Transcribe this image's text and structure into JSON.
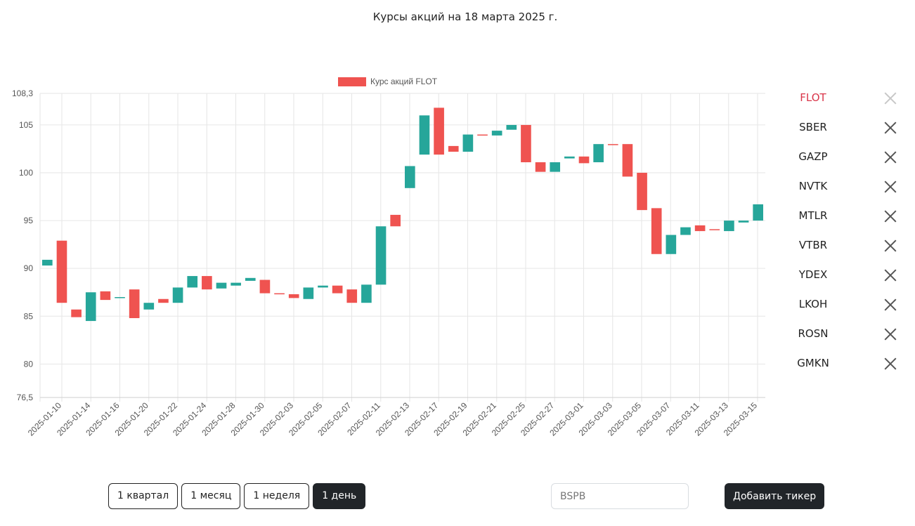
{
  "page": {
    "title": "Курсы акций на 18 марта 2025 г."
  },
  "colors": {
    "up": "#26a69a",
    "down": "#ef5350",
    "active_ticker": "#d9364a",
    "grid": "#e6e6e6"
  },
  "tickers": [
    {
      "name": "FLOT",
      "active": true
    },
    {
      "name": "SBER",
      "active": false
    },
    {
      "name": "GAZP",
      "active": false
    },
    {
      "name": "NVTK",
      "active": false
    },
    {
      "name": "MTLR",
      "active": false
    },
    {
      "name": "VTBR",
      "active": false
    },
    {
      "name": "YDEX",
      "active": false
    },
    {
      "name": "LKOH",
      "active": false
    },
    {
      "name": "ROSN",
      "active": false
    },
    {
      "name": "GMKN",
      "active": false
    }
  ],
  "remove_icon": "close-icon",
  "periods": [
    {
      "label": "1 квартал",
      "active": false
    },
    {
      "label": "1 месяц",
      "active": false
    },
    {
      "label": "1 неделя",
      "active": false
    },
    {
      "label": "1 день",
      "active": true
    }
  ],
  "add_ticker": {
    "placeholder": "BSPB",
    "button_label": "Добавить тикер"
  },
  "chart_data": {
    "type": "candlestick-bar",
    "legend": {
      "label": "Курс акций FLOT",
      "position": "top-center"
    },
    "grid": true,
    "ylim": [
      76.5,
      108.3
    ],
    "y_tick_labels": [
      "108,3",
      "105",
      "100",
      "95",
      "90",
      "85",
      "80",
      "76,5"
    ],
    "y_tick_values": [
      108.3,
      105,
      100,
      95,
      90,
      85,
      80,
      76.5
    ],
    "x_tick_labels": [
      "2025-01-10",
      "2025-01-14",
      "2025-01-16",
      "2025-01-20",
      "2025-01-22",
      "2025-01-24",
      "2025-01-28",
      "2025-01-30",
      "2025-02-03",
      "2025-02-05",
      "2025-02-07",
      "2025-02-11",
      "2025-02-13",
      "2025-02-17",
      "2025-02-19",
      "2025-02-21",
      "2025-02-25",
      "2025-02-27",
      "2025-03-01",
      "2025-03-03",
      "2025-03-05",
      "2025-03-07",
      "2025-03-11",
      "2025-03-13",
      "2025-03-15"
    ],
    "candles": [
      {
        "date": "2025-01-10",
        "open": 90.3,
        "close": 90.9
      },
      {
        "date": "2025-01-13",
        "open": 92.9,
        "close": 86.4
      },
      {
        "date": "2025-01-14",
        "open": 85.7,
        "close": 84.9
      },
      {
        "date": "2025-01-15",
        "open": 84.5,
        "close": 87.5
      },
      {
        "date": "2025-01-16",
        "open": 87.6,
        "close": 86.7
      },
      {
        "date": "2025-01-17",
        "open": 86.9,
        "close": 87.0
      },
      {
        "date": "2025-01-20",
        "open": 87.8,
        "close": 84.8
      },
      {
        "date": "2025-01-21",
        "open": 85.7,
        "close": 86.4
      },
      {
        "date": "2025-01-22",
        "open": 86.8,
        "close": 86.4
      },
      {
        "date": "2025-01-23",
        "open": 86.4,
        "close": 88.0
      },
      {
        "date": "2025-01-24",
        "open": 88.0,
        "close": 89.2
      },
      {
        "date": "2025-01-27",
        "open": 89.2,
        "close": 87.8
      },
      {
        "date": "2025-01-28",
        "open": 87.9,
        "close": 88.5
      },
      {
        "date": "2025-01-29",
        "open": 88.2,
        "close": 88.5
      },
      {
        "date": "2025-01-30",
        "open": 88.7,
        "close": 89.0
      },
      {
        "date": "2025-01-31",
        "open": 88.8,
        "close": 87.4
      },
      {
        "date": "2025-02-03",
        "open": 87.4,
        "close": 87.3
      },
      {
        "date": "2025-02-04",
        "open": 87.3,
        "close": 86.9
      },
      {
        "date": "2025-02-05",
        "open": 86.8,
        "close": 88.0
      },
      {
        "date": "2025-02-06",
        "open": 88.0,
        "close": 88.2
      },
      {
        "date": "2025-02-07",
        "open": 88.2,
        "close": 87.4
      },
      {
        "date": "2025-02-10",
        "open": 87.8,
        "close": 86.4
      },
      {
        "date": "2025-02-11",
        "open": 86.4,
        "close": 88.3
      },
      {
        "date": "2025-02-12",
        "open": 88.3,
        "close": 94.4
      },
      {
        "date": "2025-02-13",
        "open": 95.6,
        "close": 94.4
      },
      {
        "date": "2025-02-14",
        "open": 98.4,
        "close": 100.7
      },
      {
        "date": "2025-02-17",
        "open": 101.9,
        "close": 106.0
      },
      {
        "date": "2025-02-18",
        "open": 106.8,
        "close": 101.9
      },
      {
        "date": "2025-02-19",
        "open": 102.8,
        "close": 102.2
      },
      {
        "date": "2025-02-20",
        "open": 102.2,
        "close": 104.0
      },
      {
        "date": "2025-02-21",
        "open": 104.0,
        "close": 103.9
      },
      {
        "date": "2025-02-24",
        "open": 103.9,
        "close": 104.4
      },
      {
        "date": "2025-02-25",
        "open": 104.5,
        "close": 105.0
      },
      {
        "date": "2025-02-26",
        "open": 105.0,
        "close": 101.1
      },
      {
        "date": "2025-02-27",
        "open": 101.1,
        "close": 100.1
      },
      {
        "date": "2025-02-28",
        "open": 100.1,
        "close": 101.1
      },
      {
        "date": "2025-03-01",
        "open": 101.5,
        "close": 101.7
      },
      {
        "date": "2025-03-02",
        "open": 101.7,
        "close": 101.0
      },
      {
        "date": "2025-03-03",
        "open": 101.1,
        "close": 103.0
      },
      {
        "date": "2025-03-04",
        "open": 103.0,
        "close": 102.9
      },
      {
        "date": "2025-03-05",
        "open": 103.0,
        "close": 99.6
      },
      {
        "date": "2025-03-06",
        "open": 100.0,
        "close": 96.1
      },
      {
        "date": "2025-03-07",
        "open": 96.3,
        "close": 91.5
      },
      {
        "date": "2025-03-10",
        "open": 91.5,
        "close": 93.5
      },
      {
        "date": "2025-03-11",
        "open": 93.5,
        "close": 94.3
      },
      {
        "date": "2025-03-12",
        "open": 94.5,
        "close": 93.9
      },
      {
        "date": "2025-03-13",
        "open": 94.1,
        "close": 94.0
      },
      {
        "date": "2025-03-14",
        "open": 93.9,
        "close": 95.0
      },
      {
        "date": "2025-03-15",
        "open": 94.8,
        "close": 95.0
      },
      {
        "date": "2025-03-17",
        "open": 95.0,
        "close": 96.7
      }
    ]
  }
}
